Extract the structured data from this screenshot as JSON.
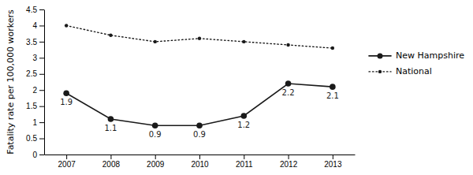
{
  "chart_data": {
    "type": "line",
    "x": [
      2007,
      2008,
      2009,
      2010,
      2011,
      2012,
      2013
    ],
    "xlim": [
      2006.5,
      2013.5
    ],
    "xticks": [
      2007,
      2008,
      2009,
      2010,
      2011,
      2012,
      2013
    ],
    "ylabel": "Fatality rate per 100,000 workers",
    "ylim": [
      0,
      4.5
    ],
    "yticks": [
      0,
      0.5,
      1,
      1.5,
      2,
      2.5,
      3,
      3.5,
      4,
      4.5
    ],
    "grid": false,
    "legend": "right",
    "series": [
      {
        "name": "New Hampshire",
        "color": "#1a1a1a",
        "line_style": "solid",
        "marker": "circle",
        "data_labels": true,
        "values": [
          1.9,
          1.1,
          0.9,
          0.9,
          1.2,
          2.2,
          2.1
        ]
      },
      {
        "name": "National",
        "color": "#1a1a1a",
        "line_style": "dotted",
        "marker": "circle",
        "values": [
          4.0,
          3.7,
          3.5,
          3.6,
          3.5,
          3.4,
          3.3
        ]
      }
    ]
  }
}
